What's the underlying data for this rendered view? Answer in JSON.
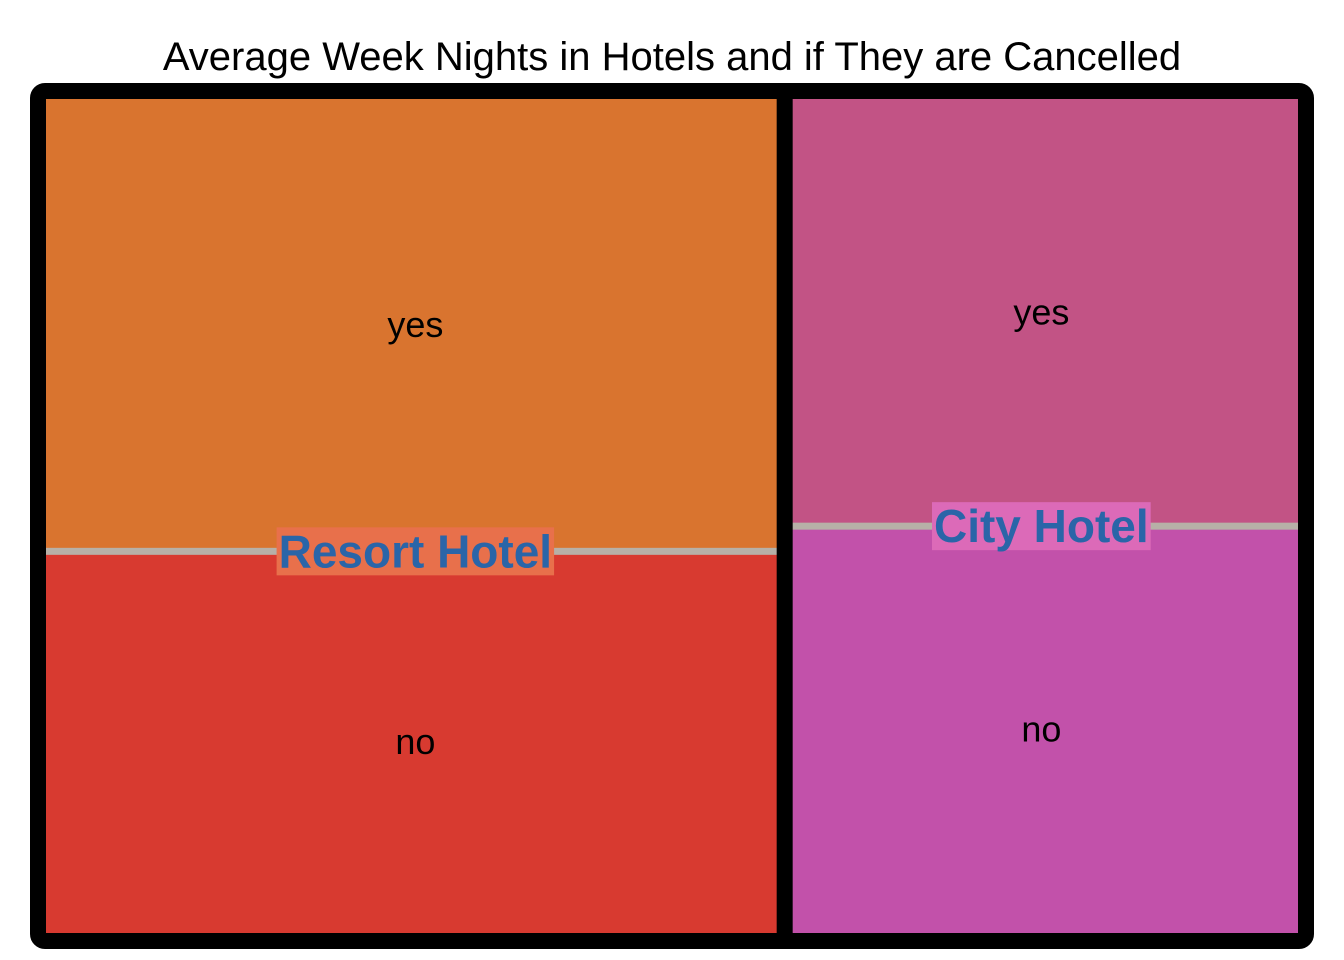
{
  "chart_data": {
    "type": "treemap",
    "title": "Average Week Nights in Hotels and if They are Cancelled",
    "colors": {
      "frame": "#000000",
      "divider": "#b7b0a7",
      "group_label": "#2a65a8"
    },
    "groups": [
      {
        "name": "Resort Hotel",
        "value": 59,
        "label_bg": "#e8704b",
        "children": [
          {
            "name": "yes",
            "value": 32,
            "color": "#d9742f"
          },
          {
            "name": "no",
            "value": 27,
            "color": "#d83a30"
          }
        ]
      },
      {
        "name": "City Hotel",
        "value": 41,
        "label_bg": "#dc6ab8",
        "children": [
          {
            "name": "yes",
            "value": 21,
            "color": "#c25385"
          },
          {
            "name": "no",
            "value": 20,
            "color": "#c251aa"
          }
        ]
      }
    ]
  }
}
